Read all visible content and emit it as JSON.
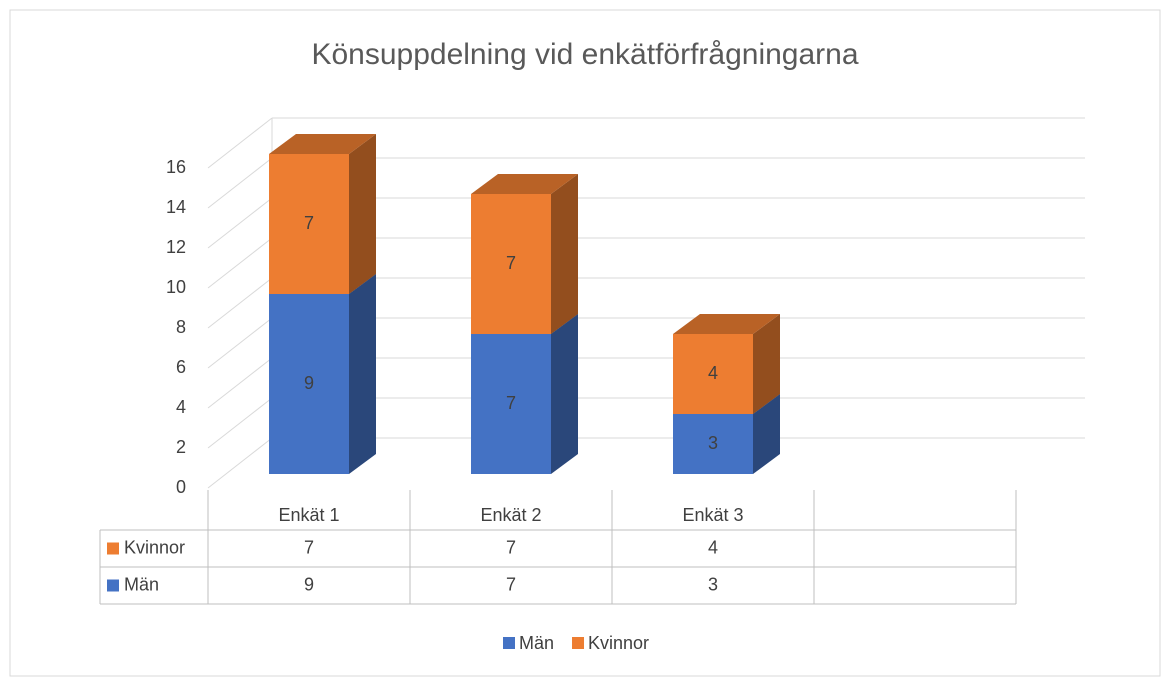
{
  "chart_data": {
    "type": "bar3d_stacked",
    "title": "Könsuppdelning vid enkätförfrågningarna",
    "categories": [
      "Enkät 1",
      "Enkät 2",
      "Enkät 3"
    ],
    "series": [
      {
        "name": "Män",
        "color": "#4472c4",
        "values": [
          9,
          7,
          3
        ]
      },
      {
        "name": "Kvinnor",
        "color": "#ed7d31",
        "values": [
          7,
          7,
          4
        ]
      }
    ],
    "ylim": [
      0,
      16
    ],
    "yticks": [
      0,
      2,
      4,
      6,
      8,
      10,
      12,
      14,
      16
    ],
    "grid": true,
    "legend": "bottom",
    "data_table": true
  }
}
